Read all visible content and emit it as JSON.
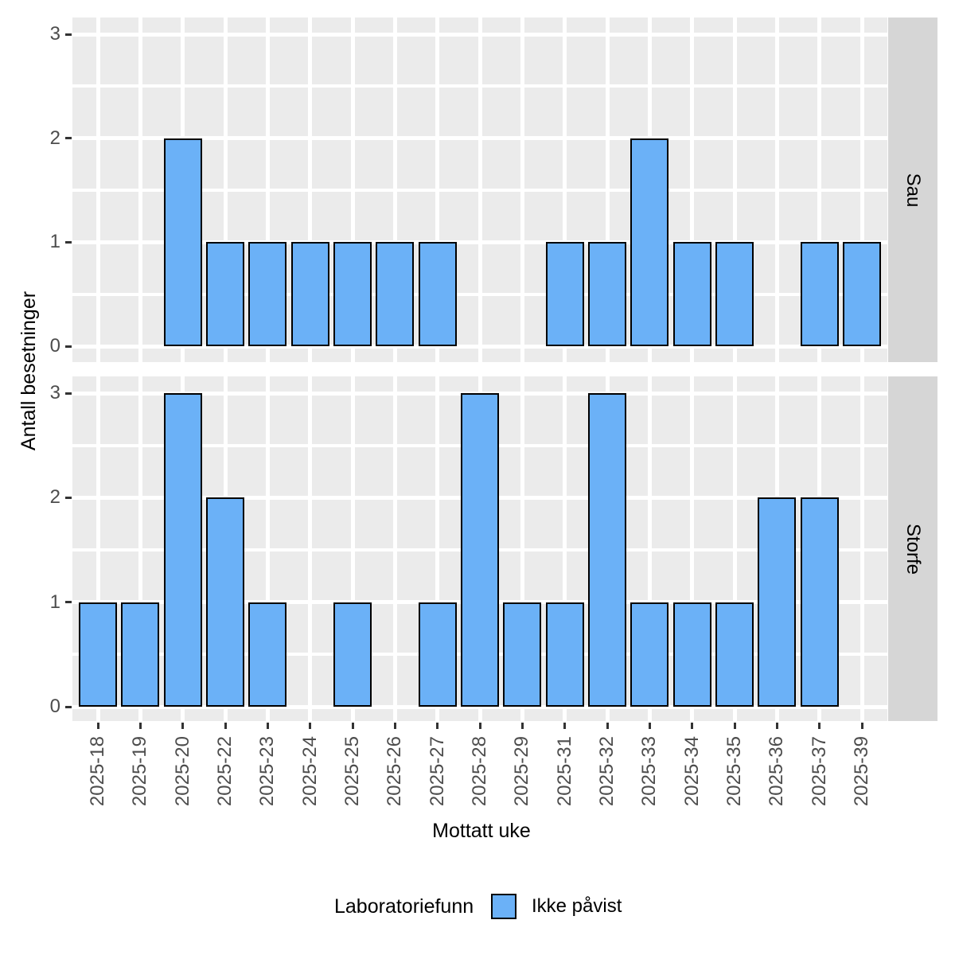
{
  "chart_data": {
    "type": "bar",
    "title": "",
    "xlabel": "Mottatt uke",
    "ylabel": "Antall besetninger",
    "categories": [
      "2025-18",
      "2025-19",
      "2025-20",
      "2025-22",
      "2025-23",
      "2025-24",
      "2025-25",
      "2025-26",
      "2025-27",
      "2025-28",
      "2025-29",
      "2025-31",
      "2025-32",
      "2025-33",
      "2025-34",
      "2025-35",
      "2025-36",
      "2025-37",
      "2025-39"
    ],
    "facets": [
      {
        "label": "Sau",
        "values": [
          null,
          null,
          2,
          1,
          1,
          1,
          1,
          1,
          1,
          null,
          null,
          1,
          1,
          2,
          1,
          1,
          null,
          1,
          1
        ]
      },
      {
        "label": "Storfe",
        "values": [
          1,
          1,
          3,
          2,
          1,
          null,
          1,
          null,
          1,
          3,
          1,
          1,
          3,
          1,
          1,
          1,
          2,
          2,
          null
        ]
      }
    ],
    "ylim": [
      0,
      3
    ],
    "yticks": [
      0,
      1,
      2,
      3
    ],
    "grid": {
      "vertical": "major at each category, white",
      "horizontal": "major every 1, minor every 0.5, white"
    },
    "legend": {
      "title": "Laboratoriefunn",
      "position": "bottom",
      "items": [
        {
          "label": "Ikke påvist",
          "color": "#6BB1F7"
        }
      ]
    }
  },
  "colors": {
    "bar_fill": "#6BB1F7",
    "bar_border": "#000000",
    "panel_bg": "#EBEBEB",
    "strip_bg": "#D6D6D6",
    "gridline": "#FFFFFF",
    "tick_mark": "#333333",
    "tick_text": "#4D4D4D",
    "title_text": "#000000"
  }
}
